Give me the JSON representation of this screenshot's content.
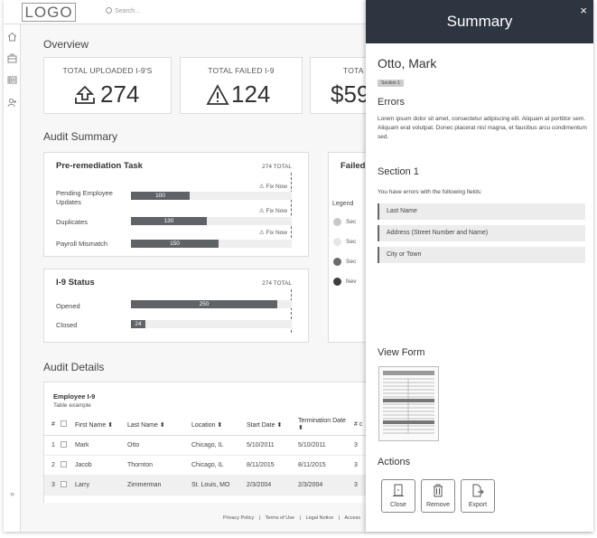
{
  "header": {
    "logo": "LOGO",
    "search_placeholder": "Search..."
  },
  "sidebar": {
    "icons": [
      "home-icon",
      "briefcase-icon",
      "id-card-icon",
      "user-add-icon"
    ],
    "expand": "»"
  },
  "overview": {
    "title": "Overview",
    "stats": [
      {
        "label": "TOTAL UPLOADED I-9'S",
        "value": "274",
        "icon": "upload-icon"
      },
      {
        "label": "TOTAL FAILED I-9",
        "value": "124",
        "icon": "warning-icon"
      },
      {
        "label": "TOTA",
        "value": "$59",
        "icon": ""
      }
    ]
  },
  "audit_summary": {
    "title": "Audit Summary",
    "pre_remediation": {
      "title": "Pre-remediation Task",
      "total": "274 TOTAL",
      "rows": [
        {
          "label": "Pending Employee Updates",
          "value": 100,
          "fix": "Fix Now"
        },
        {
          "label": "Duplicates",
          "value": 130,
          "fix": "Fix Now"
        },
        {
          "label": "Payroll Mismatch",
          "value": 150,
          "fix": "Fix Now"
        }
      ],
      "max": 274
    },
    "i9_status": {
      "title": "I-9 Status",
      "total": "274 TOTAL",
      "rows": [
        {
          "label": "Opened",
          "value": 250
        },
        {
          "label": "Closed",
          "value": 24
        }
      ],
      "max": 274
    },
    "failed": {
      "title": "Failed",
      "legend_title": "Legend",
      "legend": [
        {
          "label": "Sec",
          "color": "#c8c8c8"
        },
        {
          "label": "Sec",
          "color": "#e6e6e6"
        },
        {
          "label": "Sec",
          "color": "#6b6b6b"
        },
        {
          "label": "Nev",
          "color": "#3d3d3d"
        }
      ]
    }
  },
  "audit_details": {
    "title": "Audit Details",
    "table_title": "Employee I-9",
    "table_sub": "Table example",
    "columns": [
      "#",
      "",
      "First Name ⬍",
      "Last Name ⬍",
      "Location ⬍",
      "Start Date ⬍",
      "Termination Date ⬍",
      "# c"
    ],
    "rows": [
      [
        "1",
        "",
        "Mark",
        "Otto",
        "Chicago, IL",
        "5/10/2011",
        "5/10/2011",
        "3"
      ],
      [
        "2",
        "",
        "Jacob",
        "Thornton",
        "Chicago, IL",
        "8/11/2015",
        "8/11/2015",
        "3"
      ],
      [
        "3",
        "",
        "Larry",
        "Zimmerman",
        "St. Louis, MO",
        "2/3/2004",
        "2/3/2004",
        "3"
      ]
    ]
  },
  "footer": {
    "links": [
      "Privacy Policy",
      "Terms of Use",
      "Legal Notice",
      "Access"
    ],
    "sep": "|"
  },
  "drawer": {
    "title": "Summary",
    "close": "×",
    "person": "Otto, Mark",
    "badge": "Section 1",
    "errors_title": "Errors",
    "errors_text": "Lorem ipsum dolor sit amet, consectetur adipiscing elit. Aliquam at porttitor sem.  Aliquam erat volutpat. Donec placerat nisl magna, et faucibus arcu condimentum sed.",
    "section_title": "Section 1",
    "section_text": "You have errors with the following fields:",
    "fields": [
      "Last Name",
      "Address (Street Number and Name)",
      "City or Town"
    ],
    "view_form_title": "View Form",
    "actions_title": "Actions",
    "actions": [
      {
        "label": "Close",
        "icon": "door-icon"
      },
      {
        "label": "Remove",
        "icon": "trash-icon"
      },
      {
        "label": "Export",
        "icon": "export-icon"
      }
    ]
  }
}
